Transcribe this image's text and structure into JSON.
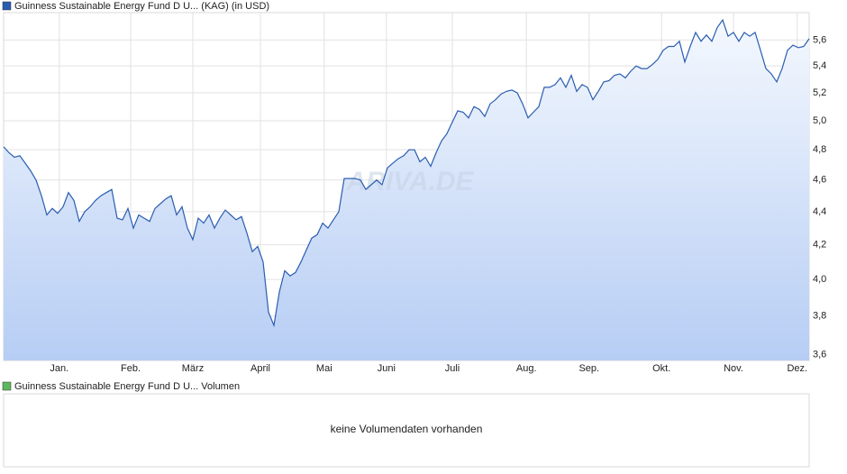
{
  "chart_data": {
    "type": "line",
    "series": [
      {
        "name": "Guinness Sustainable Energy Fund D U... (KAG) (in USD)",
        "color": "#2a5db0",
        "values": [
          4.82,
          4.78,
          4.75,
          4.76,
          4.71,
          4.66,
          4.6,
          4.5,
          4.38,
          4.42,
          4.39,
          4.43,
          4.52,
          4.47,
          4.34,
          4.4,
          4.43,
          4.47,
          4.5,
          4.52,
          4.54,
          4.36,
          4.35,
          4.42,
          4.3,
          4.38,
          4.36,
          4.34,
          4.42,
          4.45,
          4.48,
          4.5,
          4.38,
          4.43,
          4.3,
          4.23,
          4.36,
          4.33,
          4.38,
          4.3,
          4.36,
          4.41,
          4.38,
          4.35,
          4.37,
          4.27,
          4.16,
          4.19,
          4.1,
          3.82,
          3.75,
          3.93,
          4.05,
          4.02,
          4.04,
          4.1,
          4.17,
          4.24,
          4.26,
          4.33,
          4.3,
          4.35,
          4.4,
          4.61,
          4.61,
          4.61,
          4.6,
          4.54,
          4.57,
          4.6,
          4.57,
          4.68,
          4.71,
          4.74,
          4.76,
          4.8,
          4.8,
          4.72,
          4.75,
          4.69,
          4.78,
          4.86,
          4.91,
          4.99,
          5.07,
          5.06,
          5.02,
          5.1,
          5.08,
          5.03,
          5.12,
          5.15,
          5.19,
          5.21,
          5.22,
          5.2,
          5.12,
          5.02,
          5.06,
          5.1,
          5.24,
          5.24,
          5.26,
          5.31,
          5.24,
          5.33,
          5.21,
          5.26,
          5.24,
          5.15,
          5.21,
          5.28,
          5.29,
          5.33,
          5.34,
          5.31,
          5.36,
          5.4,
          5.38,
          5.38,
          5.41,
          5.45,
          5.52,
          5.55,
          5.55,
          5.59,
          5.43,
          5.55,
          5.66,
          5.59,
          5.64,
          5.59,
          5.7,
          5.76,
          5.63,
          5.66,
          5.59,
          5.66,
          5.63,
          5.66,
          5.52,
          5.38,
          5.34,
          5.28,
          5.38,
          5.52,
          5.56,
          5.54,
          5.55,
          5.61
        ]
      }
    ],
    "xlim": [
      0,
      149
    ],
    "xticks": [
      {
        "value": 10.3,
        "label": "Jan."
      },
      {
        "value": 23.5,
        "label": "Feb."
      },
      {
        "value": 35,
        "label": "März"
      },
      {
        "value": 47.5,
        "label": "April"
      },
      {
        "value": 59.3,
        "label": "Mai"
      },
      {
        "value": 70.8,
        "label": "Juni"
      },
      {
        "value": 83,
        "label": "Juli"
      },
      {
        "value": 96.7,
        "label": "Aug."
      },
      {
        "value": 108.3,
        "label": "Sep."
      },
      {
        "value": 121.7,
        "label": "Okt."
      },
      {
        "value": 135,
        "label": "Nov."
      },
      {
        "value": 146.8,
        "label": "Dez."
      }
    ],
    "ylim": [
      3.57,
      5.82
    ],
    "log_scale": true,
    "grid": true,
    "yticks": [
      {
        "value": 3.6,
        "label": "3,6"
      },
      {
        "value": 3.8,
        "label": "3,8"
      },
      {
        "value": 4.0,
        "label": "4,0"
      },
      {
        "value": 4.2,
        "label": "4,2"
      },
      {
        "value": 4.4,
        "label": "4,4"
      },
      {
        "value": 4.6,
        "label": "4,6"
      },
      {
        "value": 4.8,
        "label": "4,8"
      },
      {
        "value": 5.0,
        "label": "5,0"
      },
      {
        "value": 5.2,
        "label": "5,2"
      },
      {
        "value": 5.4,
        "label": "5,4"
      },
      {
        "value": 5.6,
        "label": "5,6"
      }
    ],
    "watermark": "ARIVA.DE"
  },
  "volume_panel": {
    "legend": "Guinness Sustainable Energy Fund D U... Volumen",
    "color": "#5cb85c",
    "message": "keine Volumendaten vorhanden"
  }
}
